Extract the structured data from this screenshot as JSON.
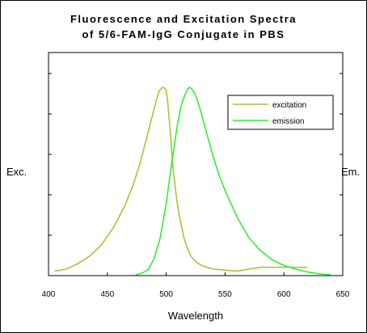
{
  "chart_data": {
    "type": "line",
    "title": [
      "Fluorescence and Excitation Spectra",
      "of 5/6-FAM-IgG Conjugate in PBS"
    ],
    "xlabel": "Wavelength",
    "ylabel_left": "Exc.",
    "ylabel_right": "Em.",
    "xlim": [
      400,
      650
    ],
    "ylim": [
      0,
      100
    ],
    "x_ticks": [
      400,
      450,
      500,
      550,
      600,
      650
    ],
    "y_tick_count": 5,
    "grid": false,
    "legend_position": "top-right",
    "colors": {
      "excitation": "#a8c43a",
      "emission": "#33ee33"
    },
    "series": [
      {
        "name": "excitation",
        "x": [
          405,
          415,
          425,
          435,
          445,
          455,
          465,
          472,
          478,
          483,
          487,
          490,
          492,
          494,
          496,
          497,
          499,
          500,
          501,
          502,
          503,
          504,
          505,
          507,
          509,
          511,
          513,
          515,
          518,
          521,
          525,
          530,
          540,
          550,
          560,
          570,
          580,
          590,
          600,
          610,
          620
        ],
        "y": [
          2,
          3,
          6,
          10,
          16,
          25,
          37,
          48,
          60,
          72,
          82,
          89,
          94,
          98,
          99.5,
          100,
          99.5,
          98,
          94,
          87,
          80,
          72,
          62,
          50,
          40,
          32,
          26,
          20,
          14,
          10,
          7,
          5,
          3,
          2.5,
          2,
          3,
          4,
          4,
          4,
          4,
          4
        ]
      },
      {
        "name": "emission",
        "x": [
          474,
          480,
          485,
          490,
          495,
          500,
          503,
          506,
          509,
          512,
          514,
          516,
          518,
          520,
          522,
          524,
          526,
          529,
          532,
          535,
          540,
          545,
          550,
          555,
          560,
          570,
          580,
          590,
          600,
          610,
          620,
          630,
          640
        ],
        "y": [
          0,
          1,
          3,
          9,
          20,
          38,
          52,
          65,
          78,
          88,
          93,
          96,
          99,
          100,
          99,
          97,
          94,
          88,
          81,
          74,
          63,
          53,
          45,
          38,
          31,
          20,
          13,
          8,
          5,
          3,
          1.5,
          0.5,
          0
        ]
      }
    ]
  }
}
